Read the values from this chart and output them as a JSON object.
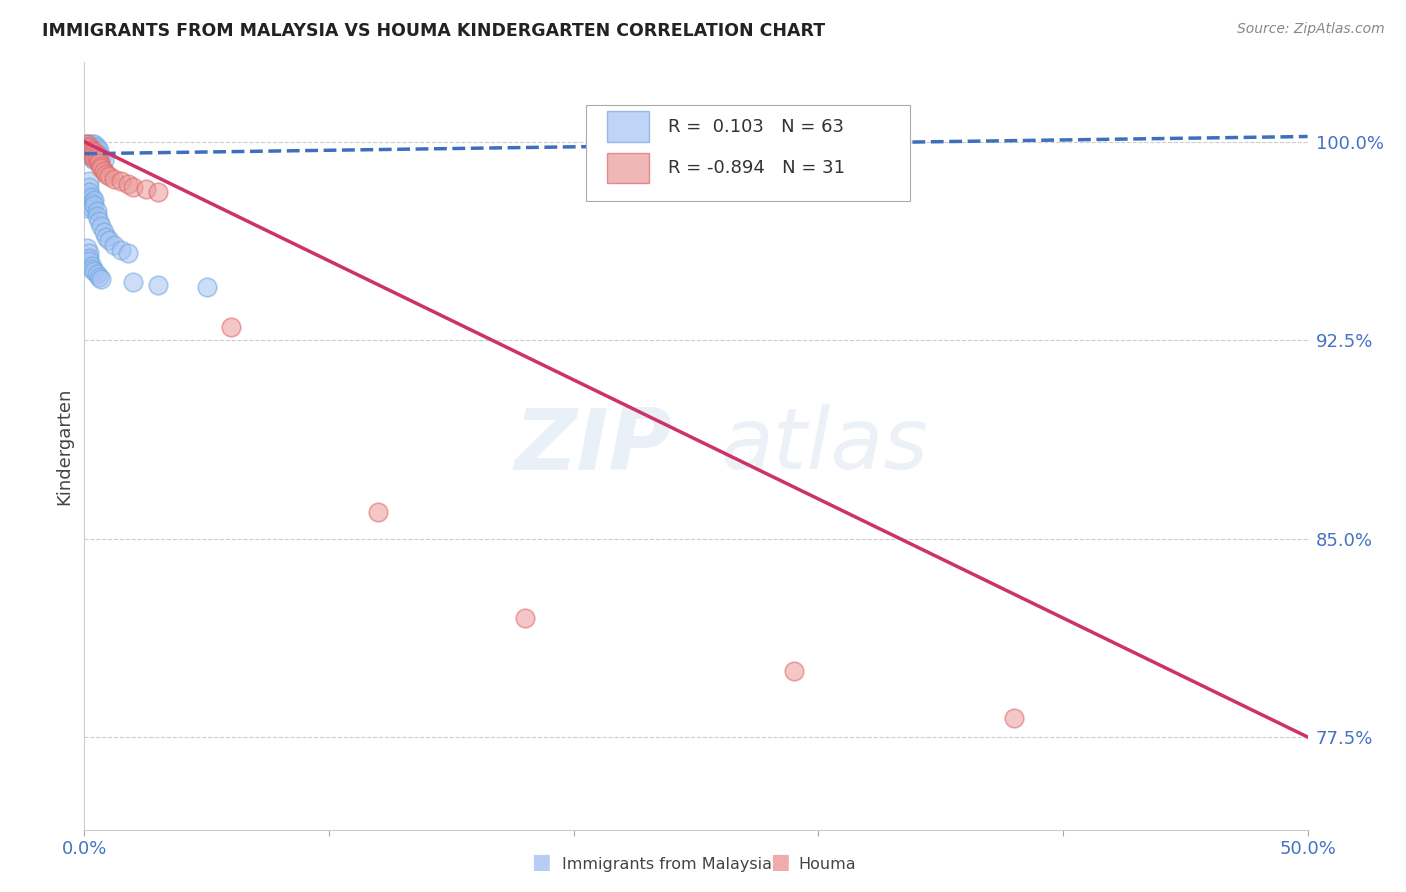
{
  "title": "IMMIGRANTS FROM MALAYSIA VS HOUMA KINDERGARTEN CORRELATION CHART",
  "source": "Source: ZipAtlas.com",
  "ylabel": "Kindergarten",
  "yticks": [
    0.775,
    0.85,
    0.925,
    1.0
  ],
  "ytick_labels": [
    "77.5%",
    "85.0%",
    "92.5%",
    "100.0%"
  ],
  "xlim": [
    0.0,
    0.5
  ],
  "ylim": [
    0.74,
    1.03
  ],
  "legend_r_blue": " 0.103",
  "legend_n_blue": "63",
  "legend_r_pink": "-0.894",
  "legend_n_pink": "31",
  "blue_color": "#6fa8dc",
  "pink_color": "#e06666",
  "blue_fill": "#a4c2f4",
  "pink_fill": "#ea9999",
  "trendline_blue_color": "#3d6fbe",
  "trendline_pink_color": "#cc3366",
  "watermark_zip": "ZIP",
  "watermark_atlas": "atlas",
  "blue_label": "Immigrants from Malaysia",
  "pink_label": "Houma",
  "blue_scatter_x": [
    0.001,
    0.001,
    0.001,
    0.001,
    0.001,
    0.002,
    0.002,
    0.002,
    0.002,
    0.002,
    0.002,
    0.002,
    0.002,
    0.003,
    0.003,
    0.003,
    0.003,
    0.003,
    0.003,
    0.004,
    0.004,
    0.004,
    0.004,
    0.005,
    0.005,
    0.005,
    0.006,
    0.006,
    0.007,
    0.008,
    0.001,
    0.001,
    0.002,
    0.002,
    0.002,
    0.003,
    0.003,
    0.003,
    0.004,
    0.004,
    0.005,
    0.005,
    0.006,
    0.007,
    0.008,
    0.009,
    0.01,
    0.012,
    0.015,
    0.018,
    0.001,
    0.002,
    0.002,
    0.002,
    0.003,
    0.003,
    0.004,
    0.005,
    0.006,
    0.007,
    0.02,
    0.03,
    0.05
  ],
  "blue_scatter_y": [
    0.999,
    0.998,
    0.997,
    0.998,
    0.999,
    0.999,
    0.998,
    0.997,
    0.996,
    0.995,
    0.998,
    0.997,
    0.996,
    0.999,
    0.998,
    0.997,
    0.996,
    0.995,
    0.994,
    0.999,
    0.997,
    0.995,
    0.993,
    0.998,
    0.996,
    0.994,
    0.997,
    0.995,
    0.994,
    0.993,
    0.98,
    0.975,
    0.985,
    0.983,
    0.981,
    0.979,
    0.977,
    0.975,
    0.978,
    0.976,
    0.974,
    0.972,
    0.97,
    0.968,
    0.966,
    0.964,
    0.963,
    0.961,
    0.959,
    0.958,
    0.96,
    0.958,
    0.956,
    0.955,
    0.953,
    0.952,
    0.951,
    0.95,
    0.949,
    0.948,
    0.947,
    0.946,
    0.945
  ],
  "pink_scatter_x": [
    0.001,
    0.001,
    0.002,
    0.002,
    0.002,
    0.003,
    0.003,
    0.003,
    0.004,
    0.004,
    0.004,
    0.005,
    0.005,
    0.006,
    0.006,
    0.007,
    0.007,
    0.008,
    0.009,
    0.01,
    0.012,
    0.015,
    0.018,
    0.02,
    0.025,
    0.03,
    0.06,
    0.12,
    0.18,
    0.29,
    0.38
  ],
  "pink_scatter_y": [
    0.999,
    0.998,
    0.998,
    0.997,
    0.996,
    0.997,
    0.996,
    0.995,
    0.996,
    0.995,
    0.994,
    0.995,
    0.994,
    0.993,
    0.992,
    0.991,
    0.99,
    0.989,
    0.988,
    0.987,
    0.986,
    0.985,
    0.984,
    0.983,
    0.982,
    0.981,
    0.93,
    0.86,
    0.82,
    0.8,
    0.782
  ],
  "blue_trendline_x": [
    0.0,
    0.5
  ],
  "blue_trendline_y": [
    0.9955,
    1.002
  ],
  "pink_trendline_x": [
    0.0,
    0.5
  ],
  "pink_trendline_y": [
    1.0,
    0.775
  ]
}
